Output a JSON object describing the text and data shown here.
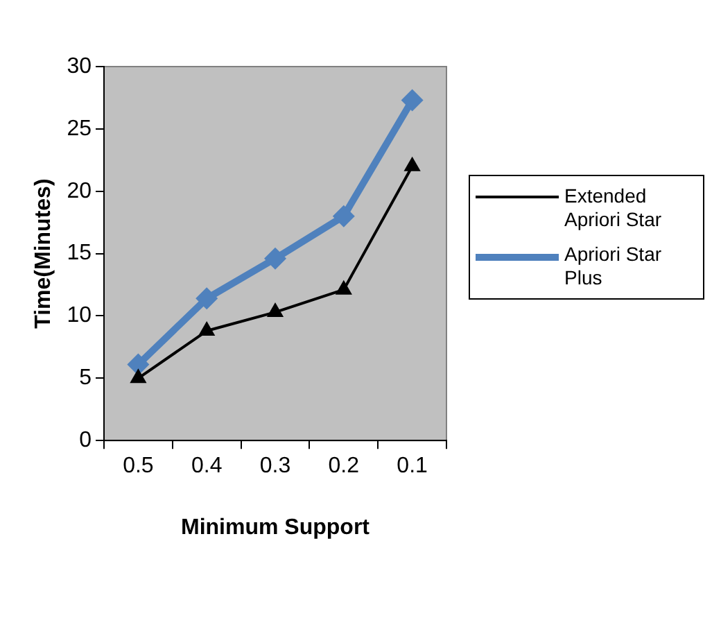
{
  "chart_data": {
    "type": "line",
    "xlabel": "Minimum Support",
    "ylabel": "Time(Minutes)",
    "categories": [
      "0.5",
      "0.4",
      "0.3",
      "0.2",
      "0.1"
    ],
    "series": [
      {
        "name": "Extended Apriori Star",
        "color": "#000000",
        "marker": "triangle",
        "values": [
          5.0,
          8.8,
          10.3,
          12.1,
          22.0
        ]
      },
      {
        "name": "Apriori Star Plus",
        "color": "#4f81bd",
        "marker": "diamond",
        "values": [
          6.1,
          11.4,
          14.6,
          18.0,
          27.3
        ]
      }
    ],
    "ylim": [
      0,
      30
    ],
    "yticks": [
      0,
      5,
      10,
      15,
      20,
      25,
      30
    ],
    "grid": false,
    "legend": "right"
  }
}
